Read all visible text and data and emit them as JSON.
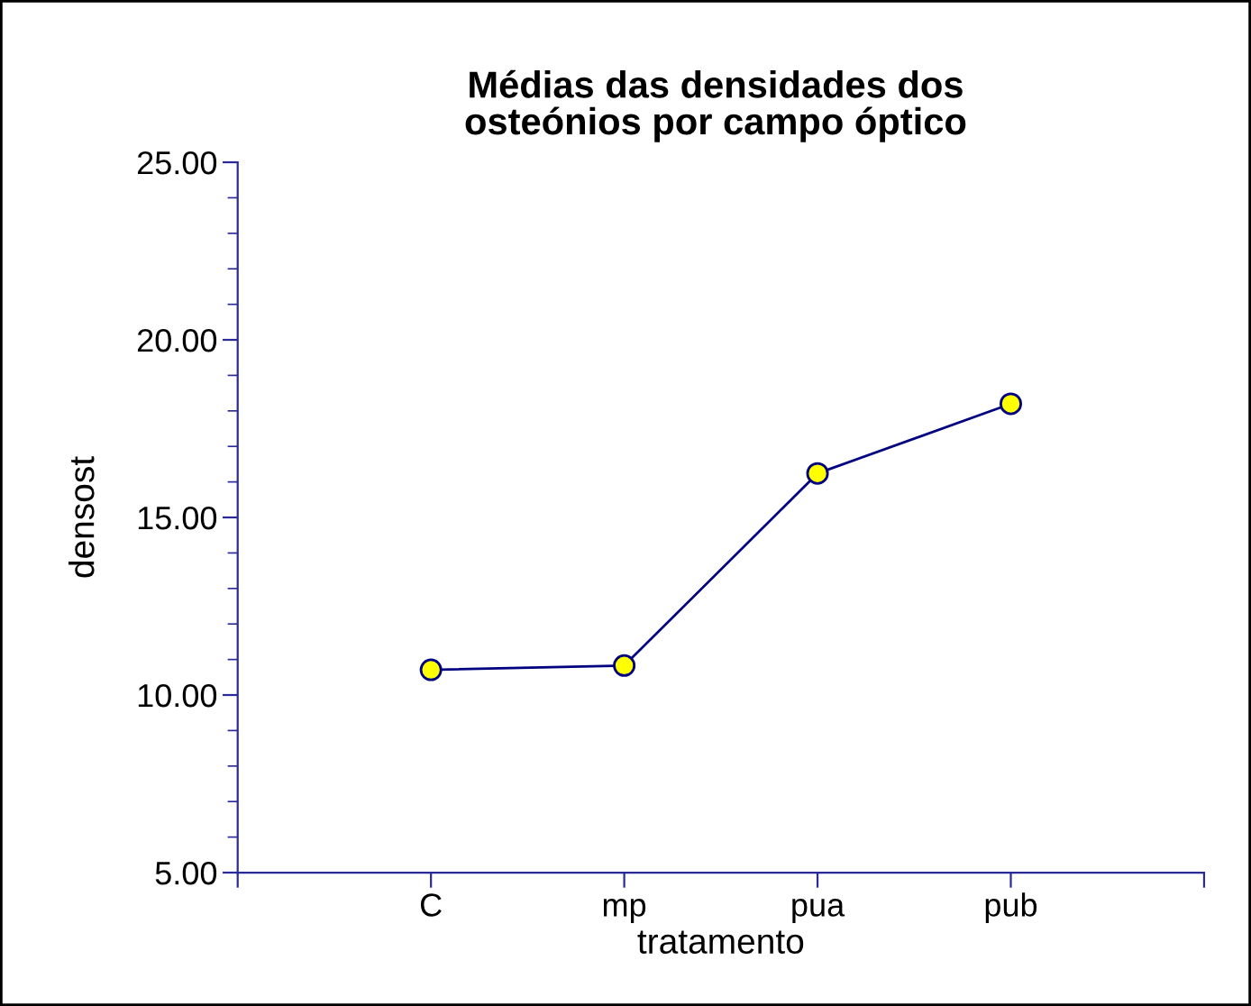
{
  "chart_data": {
    "type": "line",
    "title": "Médias das densidades dos\nosteónios por campo óptico",
    "xlabel": "tratamento",
    "ylabel": "densost",
    "categories": [
      "C",
      "mp",
      "pua",
      "pub"
    ],
    "series": [
      {
        "color": "#000080",
        "values": [
          10.71,
          10.83,
          16.24,
          18.2
        ]
      }
    ],
    "marker": "circle",
    "line_style": "solid",
    "grid": false,
    "ylim": [
      5,
      25
    ],
    "yticks": [
      {
        "value": 5,
        "label": "5.00"
      },
      {
        "value": 10,
        "label": "10.00"
      },
      {
        "value": 15,
        "label": "15.00"
      },
      {
        "value": 20,
        "label": "20.00"
      },
      {
        "value": 25,
        "label": "25.00"
      }
    ]
  }
}
